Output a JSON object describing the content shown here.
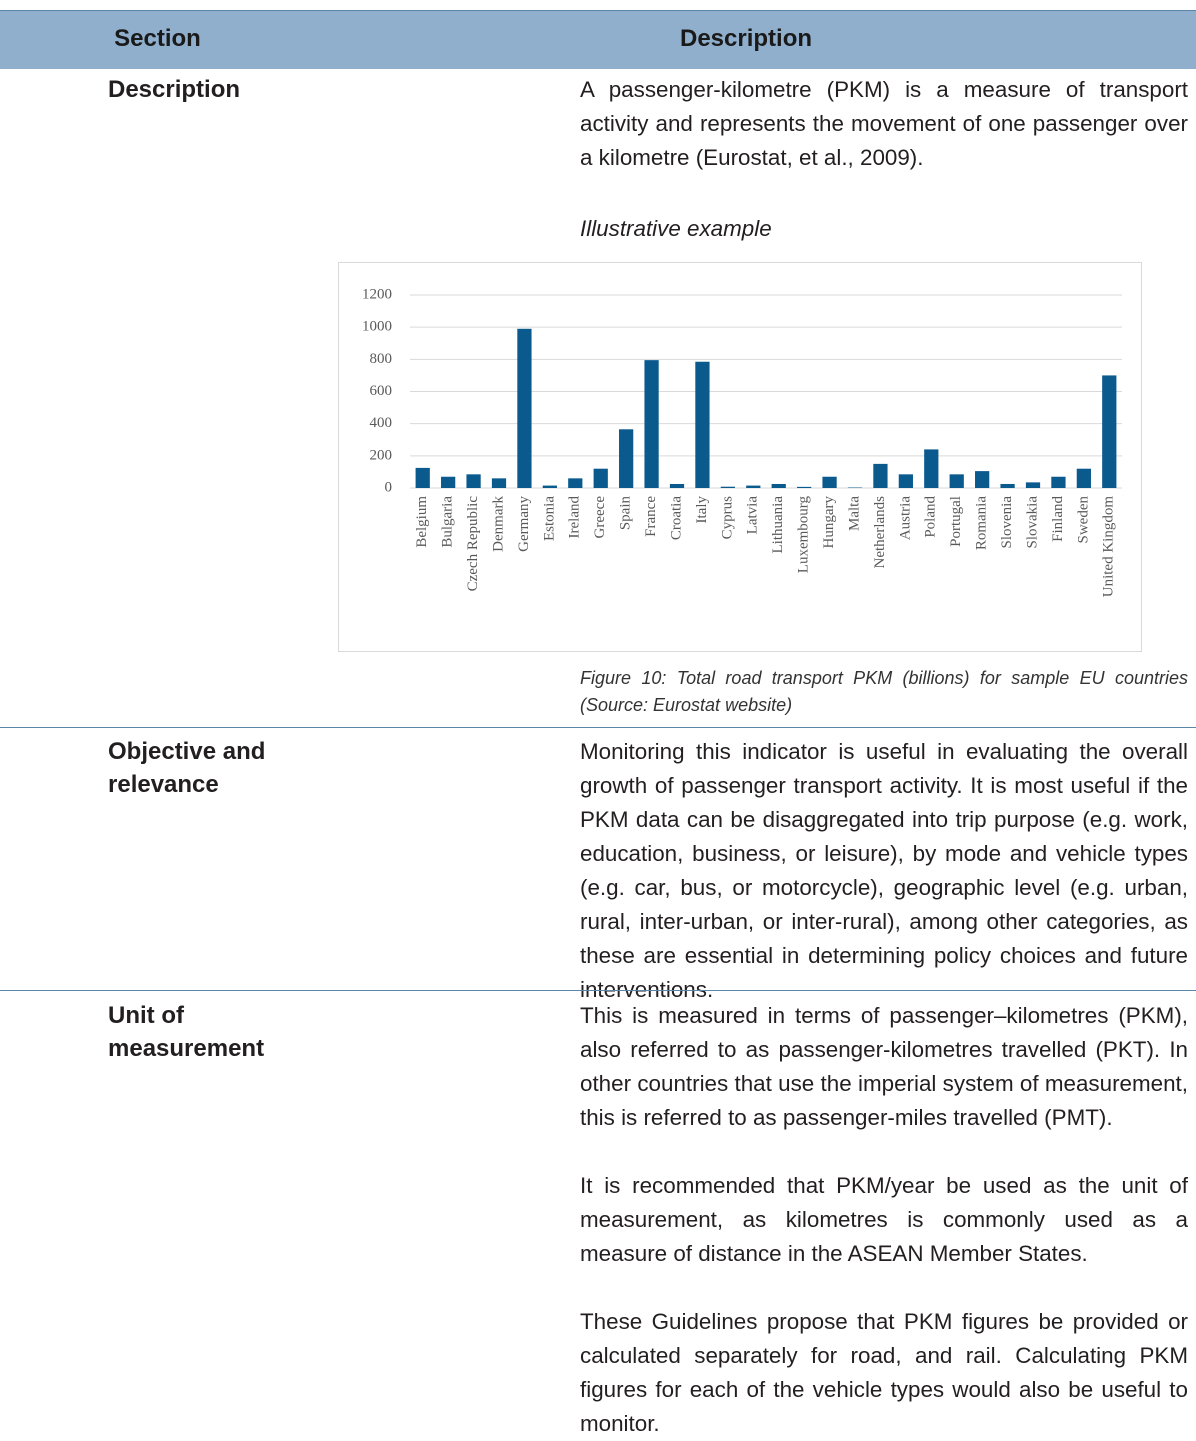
{
  "table": {
    "header": [
      "Section",
      "Description"
    ],
    "rows": [
      {
        "section": "Description",
        "paragraphs": [
          "A passenger-kilometre (PKM) is a measure of transport activity and represents the movement of one passenger over a kilometre (Eurostat, et al., 2009)."
        ],
        "example_heading": "Illustrative example",
        "caption": "Figure 10: Total road transport PKM (billions) for sample EU countries (Source: Eurostat website)"
      },
      {
        "section": "Objective and relevance",
        "paragraphs": [
          "Monitoring this indicator is useful in evaluating the overall growth of passenger transport activity. It is most useful if the PKM data can be disaggregated into trip purpose (e.g. work, education, business, or leisure), by mode and vehicle types (e.g. car, bus, or motorcycle), geographic level (e.g. urban, rural, inter-urban, or inter-rural), among other categories, as these are essential in determining policy choices and future interventions."
        ]
      },
      {
        "section": "Unit of measurement",
        "paragraphs": [
          "This is measured in terms of passenger–kilometres (PKM), also referred to as passenger-kilometres travelled (PKT). In other countries that use the imperial system of measurement, this is referred to as passenger-miles travelled (PMT).",
          "It is recommended that PKM/year be used as the unit of measurement, as kilometres is commonly used as a measure of distance in the ASEAN Member States.",
          "These Guidelines propose that PKM figures be provided or calculated separately for road, and rail. Calculating PKM figures for each of the vehicle types would also be useful to monitor."
        ]
      }
    ]
  },
  "chart_data": {
    "type": "bar",
    "categories": [
      "Belgium",
      "Bulgaria",
      "Czech Republic",
      "Denmark",
      "Germany",
      "Estonia",
      "Ireland",
      "Greece",
      "Spain",
      "France",
      "Croatia",
      "Italy",
      "Cyprus",
      "Latvia",
      "Lithuania",
      "Luxembourg",
      "Hungary",
      "Malta",
      "Netherlands",
      "Austria",
      "Poland",
      "Portugal",
      "Romania",
      "Slovenia",
      "Slovakia",
      "Finland",
      "Sweden",
      "United Kingdom"
    ],
    "values": [
      125,
      70,
      85,
      60,
      990,
      15,
      60,
      120,
      365,
      795,
      25,
      785,
      8,
      15,
      25,
      7,
      70,
      3,
      150,
      85,
      240,
      85,
      105,
      25,
      35,
      70,
      120,
      700
    ],
    "color": "#0b5a8e",
    "ylim": [
      0,
      1200
    ],
    "yticks": [
      0,
      200,
      400,
      600,
      800,
      1000,
      1200
    ],
    "grid": true
  }
}
